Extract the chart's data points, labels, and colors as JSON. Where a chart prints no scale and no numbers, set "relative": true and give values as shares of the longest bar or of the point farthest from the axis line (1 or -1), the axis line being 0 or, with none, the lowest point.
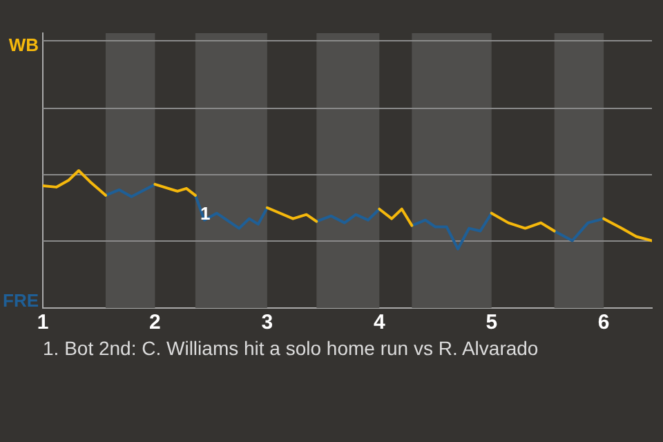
{
  "chart_data": {
    "type": "line",
    "relative": true,
    "xlim": [
      1,
      6.43
    ],
    "xticks": [
      1,
      2,
      3,
      4,
      5,
      6
    ],
    "legend": false,
    "ref_lines": [
      {
        "axis": "y",
        "value": 0.49,
        "color": "#8a8a8a"
      },
      {
        "axis": "y",
        "value": 0.97,
        "color": "#8a8a8a"
      },
      {
        "axis": "y",
        "value": 1.46,
        "color": "#8a8a8a"
      },
      {
        "axis": "y",
        "value": 1.95,
        "color": "#8a8a8a"
      }
    ],
    "series": [
      {
        "name": "WB",
        "color": "#f5b80c",
        "x": [
          1.0,
          1.12,
          1.23,
          1.32,
          1.42,
          1.56,
          1.78,
          2.0,
          2.04,
          2.2,
          2.28,
          2.36,
          2.68,
          3.0,
          3.23,
          3.35,
          3.44,
          3.72,
          4.0,
          4.11,
          4.2,
          4.29,
          4.64,
          5.0,
          5.15,
          5.3,
          5.44,
          5.56,
          5.78,
          6.0,
          6.16,
          6.29,
          6.43
        ],
        "values": [
          0.89,
          0.88,
          0.93,
          1,
          0.92,
          0.82,
          null,
          0.9,
          0.89,
          0.85,
          0.87,
          0.82,
          null,
          0.73,
          0.65,
          0.68,
          0.63,
          null,
          0.72,
          0.65,
          0.72,
          0.6,
          null,
          0.69,
          0.62,
          0.58,
          0.62,
          0.56,
          null,
          0.65,
          0.58,
          0.52,
          0.49
        ]
      },
      {
        "name": "FRE",
        "color": "#1f5f96",
        "x": [
          1.56,
          1.68,
          1.79,
          2.0,
          2.18,
          2.36,
          2.44,
          2.55,
          2.75,
          2.84,
          2.92,
          3.0,
          3.22,
          3.44,
          3.57,
          3.69,
          3.79,
          3.9,
          4.0,
          4.15,
          4.29,
          4.41,
          4.5,
          4.6,
          4.7,
          4.8,
          4.9,
          5.0,
          5.28,
          5.56,
          5.72,
          5.86,
          6.0
        ],
        "values": [
          0.82,
          0.86,
          0.81,
          0.9,
          null,
          0.82,
          0.64,
          0.69,
          0.58,
          0.65,
          0.61,
          0.73,
          null,
          0.63,
          0.67,
          0.62,
          0.68,
          0.64,
          0.72,
          null,
          0.6,
          0.64,
          0.59,
          0.59,
          0.43,
          0.58,
          0.56,
          0.69,
          null,
          0.56,
          0.49,
          0.62,
          0.65
        ]
      }
    ],
    "bands": [
      {
        "axis": "x",
        "from": 1.56,
        "to": 2.0,
        "color": "#4f4e4c"
      },
      {
        "axis": "x",
        "from": 2.36,
        "to": 3.0,
        "color": "#4f4e4c"
      },
      {
        "axis": "x",
        "from": 3.44,
        "to": 4.0,
        "color": "#4f4e4c"
      },
      {
        "axis": "x",
        "from": 4.29,
        "to": 5.0,
        "color": "#4f4e4c"
      },
      {
        "axis": "x",
        "from": 5.56,
        "to": 6.0,
        "color": "#4f4e4c"
      }
    ],
    "annotations": [
      {
        "text": "1",
        "x": 2.44,
        "y": 0.64
      },
      "1. Bot 2nd: C. Williams hit a solo home run vs R. Alvarado"
    ]
  }
}
